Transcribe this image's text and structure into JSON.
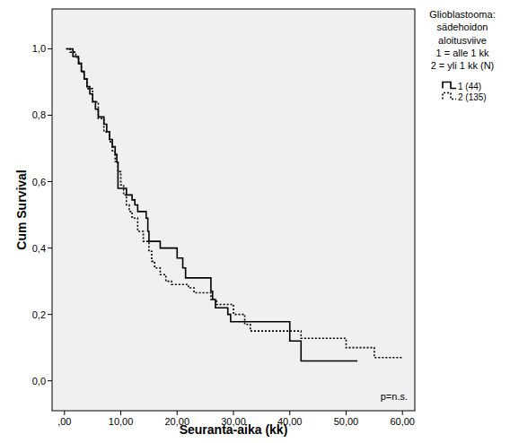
{
  "chart_data": {
    "type": "step",
    "x_label": "Seuranta-aika (kk)",
    "y_label": "Cum Survival",
    "annotation": "p=n.s.",
    "legend_title": [
      "Glioblastooma:",
      "sädehoidon",
      "aloitusviive",
      "1 = alle 1 kk",
      "2 = yli 1 kk (N)"
    ],
    "legend": "right",
    "grid": false,
    "xlim": [
      -2.2,
      62.2
    ],
    "ylim": [
      -0.09,
      1.12
    ],
    "xticks": [
      {
        "value": 0,
        "label": ",00"
      },
      {
        "value": 10,
        "label": "10,00"
      },
      {
        "value": 20,
        "label": "20,00"
      },
      {
        "value": 30,
        "label": "30,00"
      },
      {
        "value": 40,
        "label": "40,00"
      },
      {
        "value": 50,
        "label": "50,00"
      },
      {
        "value": 60,
        "label": "60,00"
      }
    ],
    "yticks": [
      {
        "value": 0,
        "label": "0,0"
      },
      {
        "value": 0.2,
        "label": "0,2"
      },
      {
        "value": 0.4,
        "label": "0,4"
      },
      {
        "value": 0.6,
        "label": "0,6"
      },
      {
        "value": 0.8,
        "label": "0,8"
      },
      {
        "value": 1,
        "label": "1,0"
      }
    ],
    "series": [
      {
        "name": "1 (44)",
        "color": "#000000",
        "line_style": "solid",
        "x": [
          0.3,
          1.5,
          2.5,
          3,
          3.5,
          4,
          4.5,
          5,
          5.5,
          6,
          7,
          7.5,
          8,
          8.5,
          9,
          9.3,
          9.5,
          11,
          12,
          12.5,
          13,
          14.5,
          14.8,
          15,
          17,
          20,
          21,
          21.5,
          26,
          26.3,
          26.8,
          29,
          29.5,
          40,
          42,
          52
        ],
        "values": [
          1,
          0.977,
          0.955,
          0.932,
          0.909,
          0.886,
          0.864,
          0.841,
          0.818,
          0.795,
          0.773,
          0.75,
          0.727,
          0.705,
          0.682,
          0.659,
          0.58,
          0.56,
          0.545,
          0.53,
          0.51,
          0.49,
          0.45,
          0.42,
          0.4,
          0.37,
          0.34,
          0.31,
          0.27,
          0.245,
          0.22,
          0.2,
          0.178,
          0.12,
          0.06,
          0.06
        ]
      },
      {
        "name": "2 (135)",
        "color": "#000000",
        "line_style": "dotted",
        "x": [
          0.3,
          1,
          2,
          2.5,
          3,
          3.5,
          4,
          5,
          6,
          7,
          8,
          8.5,
          9,
          9.5,
          10,
          10.5,
          11,
          11.5,
          12,
          13,
          14,
          15,
          15.5,
          16,
          17,
          18,
          19,
          22,
          23,
          26,
          27,
          30,
          32,
          33,
          42,
          50,
          55,
          60
        ],
        "values": [
          1,
          0.99,
          0.975,
          0.96,
          0.93,
          0.91,
          0.88,
          0.84,
          0.79,
          0.75,
          0.72,
          0.69,
          0.66,
          0.63,
          0.59,
          0.56,
          0.53,
          0.51,
          0.49,
          0.45,
          0.42,
          0.39,
          0.36,
          0.34,
          0.32,
          0.3,
          0.29,
          0.28,
          0.265,
          0.245,
          0.23,
          0.2,
          0.17,
          0.15,
          0.128,
          0.1,
          0.07,
          0.07
        ]
      }
    ]
  }
}
